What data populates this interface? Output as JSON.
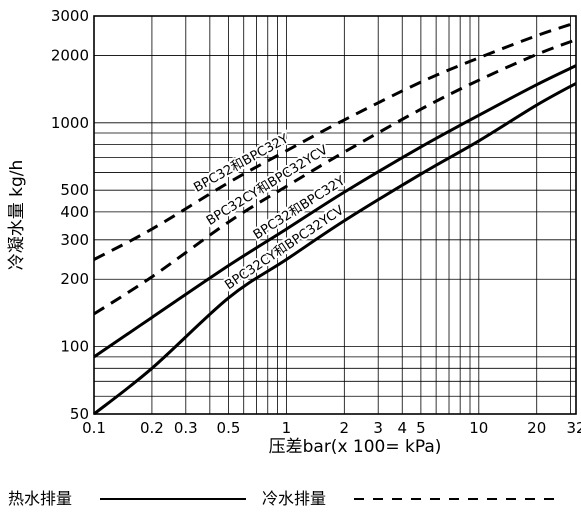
{
  "chart_data": {
    "type": "line",
    "x_scale": "log",
    "y_scale": "log",
    "xlim": [
      0.1,
      32
    ],
    "ylim": [
      50,
      3000
    ],
    "xlabel": "压差bar(x 100= kPa)",
    "ylabel": "冷凝水量 kg/h",
    "x_ticks": [
      {
        "value": 0.1,
        "label": "0.1"
      },
      {
        "value": 0.2,
        "label": "0.2"
      },
      {
        "value": 0.3,
        "label": "0.3"
      },
      {
        "value": 0.5,
        "label": "0.5"
      },
      {
        "value": 1,
        "label": "1"
      },
      {
        "value": 2,
        "label": "2"
      },
      {
        "value": 3,
        "label": "3"
      },
      {
        "value": 4,
        "label": "4"
      },
      {
        "value": 5,
        "label": "5"
      },
      {
        "value": 10,
        "label": "10"
      },
      {
        "value": 20,
        "label": "20"
      },
      {
        "value": 32,
        "label": "32"
      }
    ],
    "y_ticks": [
      {
        "value": 50,
        "label": "50"
      },
      {
        "value": 100,
        "label": "100"
      },
      {
        "value": 200,
        "label": "200"
      },
      {
        "value": 300,
        "label": "300"
      },
      {
        "value": 400,
        "label": "400"
      },
      {
        "value": 500,
        "label": "500"
      },
      {
        "value": 1000,
        "label": "1000"
      },
      {
        "value": 2000,
        "label": "2000"
      },
      {
        "value": 3000,
        "label": "3000"
      }
    ],
    "grid": true,
    "series": [
      {
        "name": "BPC32和BPC32Y",
        "style": "dashed",
        "x": [
          0.1,
          0.2,
          0.5,
          1,
          2,
          5,
          10,
          20,
          32
        ],
        "y": [
          245,
          335,
          540,
          750,
          1030,
          1520,
          1950,
          2450,
          2800
        ]
      },
      {
        "name": "BPC32CY和BPC32YCV",
        "style": "dashed",
        "x": [
          0.1,
          0.2,
          0.5,
          1,
          2,
          5,
          10,
          20,
          32
        ],
        "y": [
          140,
          205,
          360,
          520,
          740,
          1150,
          1550,
          2020,
          2350
        ]
      },
      {
        "name": "BPC32和BPC32Y",
        "style": "solid",
        "x": [
          0.1,
          0.2,
          0.5,
          1,
          2,
          5,
          10,
          20,
          32
        ],
        "y": [
          90,
          135,
          230,
          335,
          490,
          780,
          1080,
          1480,
          1800
        ]
      },
      {
        "name": "BPC32CY和BPC32YCV",
        "style": "solid",
        "x": [
          0.1,
          0.2,
          0.5,
          1,
          2,
          5,
          10,
          20,
          32
        ],
        "y": [
          50,
          80,
          165,
          245,
          365,
          590,
          830,
          1200,
          1500
        ]
      }
    ],
    "legend": [
      {
        "label": "热水排量",
        "style": "solid"
      },
      {
        "label": "冷水排量",
        "style": "dashed"
      }
    ]
  }
}
